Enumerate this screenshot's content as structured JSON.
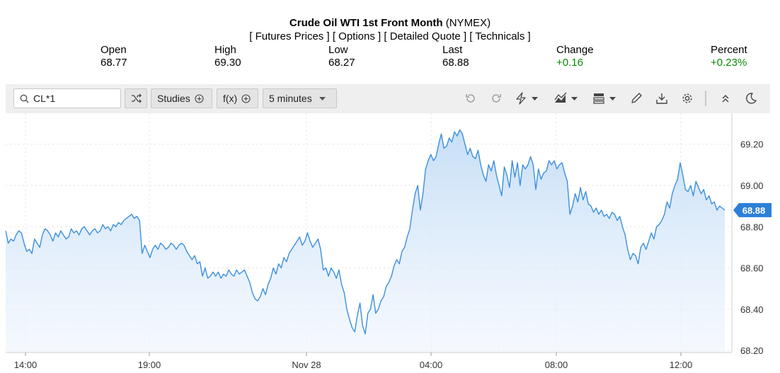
{
  "header": {
    "title_bold": "Crude Oil WTI 1st Front Month",
    "title_exchange": "(NYMEX)",
    "links": [
      "[ Futures Prices ]",
      "[ Options ]",
      "[ Detailed Quote ]",
      "[ Technicals ]"
    ]
  },
  "quote": {
    "open": {
      "label": "Open",
      "value": "68.77"
    },
    "high": {
      "label": "High",
      "value": "69.30"
    },
    "low": {
      "label": "Low",
      "value": "68.27"
    },
    "last": {
      "label": "Last",
      "value": "68.88"
    },
    "change": {
      "label": "Change",
      "value": "+0.16"
    },
    "percent": {
      "label": "Percent",
      "value": "+0.23%"
    }
  },
  "colors": {
    "positive": "#0a8a0a",
    "line": "#3d8fdc",
    "last_badge": "#2c7fd9"
  },
  "toolbar": {
    "symbol": "CL*1",
    "studies_label": "Studies",
    "fx_label": "f(x)",
    "interval_label": "5 minutes",
    "icons": [
      "search-icon",
      "shuffle-icon",
      "plus-circle-icon",
      "undo-icon",
      "redo-icon",
      "lightning-icon",
      "chart-style-icon",
      "template-icon",
      "pencil-icon",
      "download-icon",
      "gear-icon",
      "collapse-icon",
      "moon-icon"
    ]
  },
  "chart_data": {
    "type": "area",
    "x_tick_labels": [
      "14:00",
      "19:00",
      "Nov 28",
      "04:00",
      "08:00",
      "12:00"
    ],
    "y_tick_labels": [
      "69.20",
      "69.00",
      "68.80",
      "68.60",
      "68.40",
      "68.20"
    ],
    "ylim": [
      68.19,
      69.35
    ],
    "last_value_label": "68.88",
    "grid": true,
    "series": [
      {
        "values": [
          68.78,
          68.72,
          68.74,
          68.73,
          68.76,
          68.78,
          68.77,
          68.72,
          68.68,
          68.69,
          68.67,
          68.74,
          68.72,
          68.7,
          68.76,
          68.79,
          68.78,
          68.76,
          68.73,
          68.77,
          68.75,
          68.78,
          68.76,
          68.74,
          68.75,
          68.79,
          68.77,
          68.78,
          68.76,
          68.79,
          68.8,
          68.78,
          68.76,
          68.78,
          68.79,
          68.77,
          68.78,
          68.81,
          68.79,
          68.8,
          68.78,
          68.81,
          68.8,
          68.82,
          68.81,
          68.83,
          68.84,
          68.85,
          68.86,
          68.84,
          68.85,
          68.83,
          68.67,
          68.71,
          68.68,
          68.65,
          68.69,
          68.71,
          68.69,
          68.72,
          68.71,
          68.69,
          68.7,
          68.72,
          68.71,
          68.69,
          68.71,
          68.72,
          68.71,
          68.68,
          68.66,
          68.64,
          68.66,
          68.62,
          68.63,
          68.56,
          68.6,
          68.55,
          68.56,
          68.58,
          68.56,
          68.58,
          68.55,
          68.57,
          68.56,
          68.59,
          68.57,
          68.56,
          68.59,
          68.57,
          68.58,
          68.59,
          68.56,
          68.53,
          68.48,
          68.45,
          68.44,
          68.46,
          68.5,
          68.47,
          68.52,
          68.55,
          68.6,
          68.57,
          68.62,
          68.6,
          68.65,
          68.63,
          68.67,
          68.69,
          68.71,
          68.73,
          68.75,
          68.71,
          68.73,
          68.77,
          68.73,
          68.7,
          68.72,
          68.74,
          68.69,
          68.59,
          68.6,
          68.56,
          68.6,
          68.58,
          68.55,
          68.59,
          68.52,
          68.48,
          68.4,
          68.35,
          68.31,
          68.29,
          68.37,
          68.43,
          68.32,
          68.28,
          68.38,
          68.4,
          68.47,
          68.38,
          68.4,
          68.44,
          68.46,
          68.51,
          68.53,
          68.56,
          68.61,
          68.64,
          68.62,
          68.68,
          68.7,
          68.75,
          68.79,
          68.88,
          68.96,
          69.0,
          68.88,
          68.96,
          69.08,
          69.12,
          69.15,
          69.12,
          69.14,
          69.2,
          69.25,
          69.18,
          69.19,
          69.23,
          69.21,
          69.26,
          69.24,
          69.27,
          69.25,
          69.2,
          69.15,
          69.18,
          69.14,
          69.13,
          69.17,
          69.1,
          69.05,
          69.02,
          69.1,
          69.07,
          69.12,
          69.05,
          69.0,
          68.95,
          69.09,
          69.05,
          68.99,
          69.12,
          69.04,
          69.11,
          69.0,
          69.1,
          69.08,
          69.1,
          69.14,
          69.1,
          68.98,
          69.08,
          69.03,
          69.06,
          69.07,
          69.12,
          69.1,
          69.12,
          69.08,
          69.1,
          69.11,
          69.06,
          69.02,
          68.86,
          68.9,
          68.96,
          68.92,
          68.99,
          68.93,
          68.97,
          68.91,
          68.9,
          68.87,
          68.89,
          68.86,
          68.88,
          68.85,
          68.86,
          68.84,
          68.87,
          68.86,
          68.83,
          68.85,
          68.8,
          68.76,
          68.69,
          68.64,
          68.67,
          68.66,
          68.62,
          68.7,
          68.72,
          68.69,
          68.73,
          68.77,
          68.74,
          68.8,
          68.81,
          68.83,
          68.86,
          68.92,
          68.89,
          68.96,
          69.0,
          69.03,
          69.11,
          69.05,
          68.98,
          68.97,
          69.0,
          68.95,
          69.02,
          68.99,
          68.96,
          68.98,
          68.93,
          68.95,
          68.91,
          68.92,
          68.88,
          68.9,
          68.89,
          68.88
        ]
      }
    ]
  }
}
